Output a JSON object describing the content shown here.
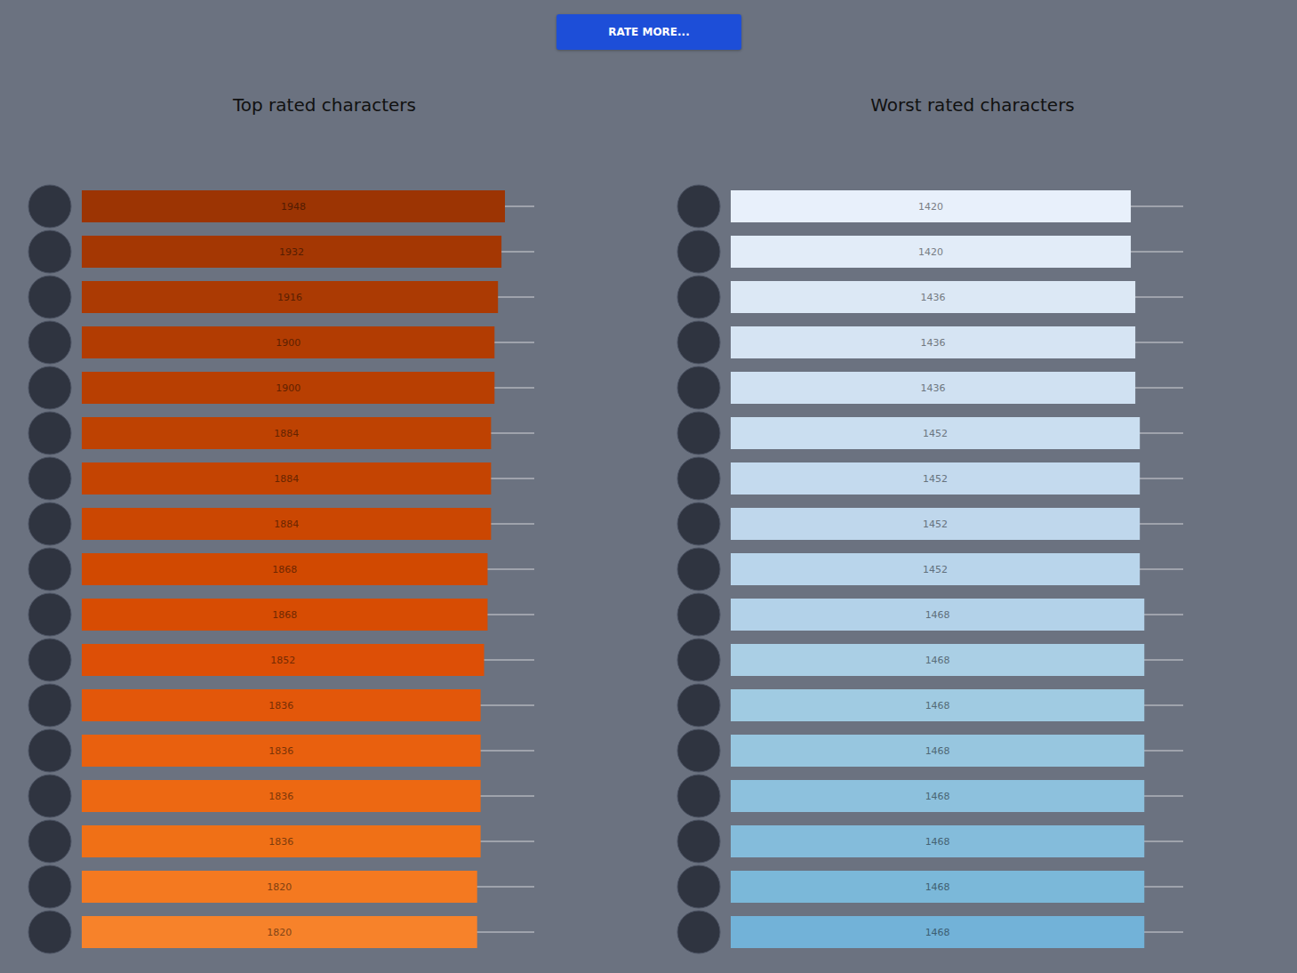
{
  "button": "RATE MORE...",
  "chart_data": [
    {
      "type": "bar",
      "title": "Top rated characters",
      "orientation": "horizontal",
      "data_labels": true,
      "tick_labels": false,
      "values": [
        1948,
        1932,
        1916,
        1900,
        1900,
        1884,
        1884,
        1884,
        1868,
        1868,
        1852,
        1836,
        1836,
        1836,
        1836,
        1820,
        1820
      ],
      "colors": [
        "#9c3403",
        "#a43703",
        "#ab3a03",
        "#b23c02",
        "#b83f02",
        "#be4202",
        "#c44402",
        "#cb4702",
        "#d14901",
        "#d74c03",
        "#dd4f06",
        "#e3570a",
        "#e9600e",
        "#ed6812",
        "#f07016",
        "#f47920",
        "#f7822a"
      ],
      "xlim": [
        0,
        2083
      ]
    },
    {
      "type": "bar",
      "title": "Worst rated characters",
      "orientation": "horizontal",
      "data_labels": true,
      "tick_labels": false,
      "values": [
        1420,
        1420,
        1436,
        1436,
        1436,
        1452,
        1452,
        1452,
        1452,
        1468,
        1468,
        1468,
        1468,
        1468,
        1468,
        1468,
        1468
      ],
      "colors": [
        "#e8f0fb",
        "#e2ecf8",
        "#dce8f5",
        "#d6e4f3",
        "#d0e1f2",
        "#cadef0",
        "#c4daee",
        "#bfd7ec",
        "#b9d5eb",
        "#b3d2e9",
        "#aacfe5",
        "#a0cbe2",
        "#97c6df",
        "#8dc1dd",
        "#84bcdb",
        "#7bb8d9",
        "#72b2d8"
      ],
      "xlim": [
        0,
        1606
      ]
    }
  ]
}
